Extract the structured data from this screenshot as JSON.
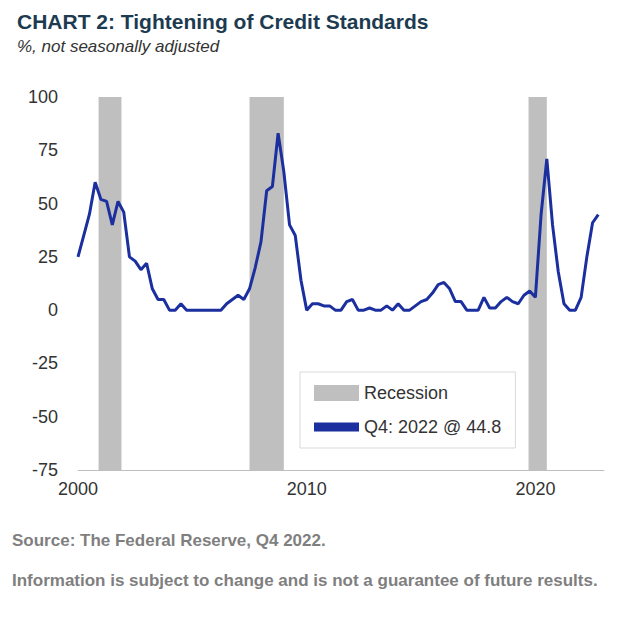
{
  "chart_data": {
    "type": "line",
    "title": "CHART 2: Tightening of Credit Standards",
    "subtitle": "%, not seasonally adjusted",
    "x": [
      2000,
      2000.25,
      2000.5,
      2000.75,
      2001,
      2001.25,
      2001.5,
      2001.75,
      2002,
      2002.25,
      2002.5,
      2002.75,
      2003,
      2003.25,
      2003.5,
      2003.75,
      2004,
      2004.25,
      2004.5,
      2004.75,
      2005,
      2005.25,
      2005.5,
      2005.75,
      2006,
      2006.25,
      2006.5,
      2006.75,
      2007,
      2007.25,
      2007.5,
      2007.75,
      2008,
      2008.25,
      2008.5,
      2008.75,
      2009,
      2009.25,
      2009.5,
      2009.75,
      2010,
      2010.25,
      2010.5,
      2010.75,
      2011,
      2011.25,
      2011.5,
      2011.75,
      2012,
      2012.25,
      2012.5,
      2012.75,
      2013,
      2013.25,
      2013.5,
      2013.75,
      2014,
      2014.25,
      2014.5,
      2014.75,
      2015,
      2015.25,
      2015.5,
      2015.75,
      2016,
      2016.25,
      2016.5,
      2016.75,
      2017,
      2017.25,
      2017.5,
      2017.75,
      2018,
      2018.25,
      2018.5,
      2018.75,
      2019,
      2019.25,
      2019.5,
      2019.75,
      2020,
      2020.25,
      2020.5,
      2020.75,
      2021,
      2021.25,
      2021.5,
      2021.75,
      2022,
      2022.25,
      2022.5,
      2022.75
    ],
    "series": [
      {
        "name": "Q4: 2022 @ 44.8",
        "color": "#1b2f9e",
        "values": [
          25,
          35,
          45,
          60,
          52,
          51,
          40,
          51,
          46,
          25,
          23,
          19,
          22,
          10,
          5,
          5,
          0,
          0,
          3,
          0,
          0,
          0,
          0,
          0,
          0,
          0,
          3,
          5,
          7,
          5,
          10,
          20,
          32,
          56,
          58,
          83,
          65,
          40,
          35,
          14,
          0,
          3,
          3,
          2,
          2,
          0,
          0,
          4,
          5,
          0,
          0,
          1,
          0,
          0,
          2,
          0,
          3,
          0,
          0,
          2,
          4,
          5,
          8,
          12,
          13,
          10,
          4,
          4,
          0,
          0,
          0,
          6,
          1,
          1,
          4,
          6,
          4,
          3,
          7,
          9,
          6,
          45,
          71,
          40,
          18,
          3,
          0,
          0,
          6,
          25,
          41,
          44.8
        ]
      }
    ],
    "recessions": {
      "name": "Recession",
      "color": "#bfbfbf",
      "ranges": [
        [
          2000.9,
          2001.9
        ],
        [
          2007.5,
          2009.0
        ],
        [
          2019.7,
          2020.5
        ]
      ]
    },
    "xlim": [
      2000,
      2023
    ],
    "xticks": [
      2000,
      2010,
      2020
    ],
    "ylim": [
      -75,
      100
    ],
    "yticks": [
      -75,
      -50,
      -25,
      0,
      25,
      50,
      75,
      100
    ],
    "grid": false,
    "legend": "bottom",
    "source": "Source: The Federal Reserve, Q4 2022.",
    "note": "Information is subject to change and is not a guarantee of future results."
  }
}
